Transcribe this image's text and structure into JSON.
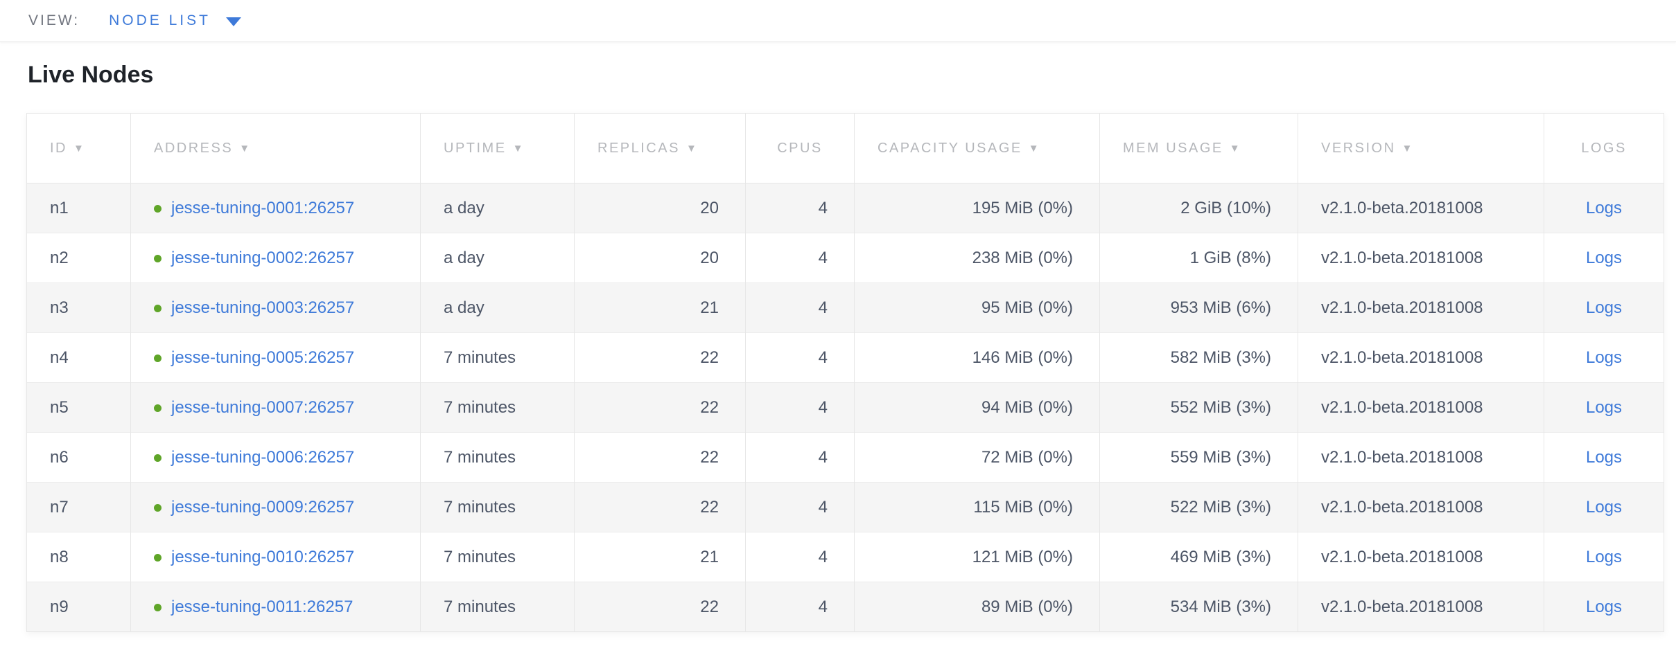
{
  "view_bar": {
    "label": "VIEW:",
    "selected": "NODE LIST"
  },
  "page": {
    "title": "Live Nodes"
  },
  "colors": {
    "accent_blue": "#3e7ad9",
    "live_green": "#5fa528",
    "header_gray": "#b5b7bb",
    "cell_text": "#4c5566",
    "alt_row_bg": "#f5f5f5"
  },
  "table": {
    "sort_arrow_icon": "▼",
    "logs_link_label": "Logs",
    "columns": [
      {
        "key": "id",
        "label": "ID",
        "sortable": true,
        "header_align": "left",
        "cell_align": "left"
      },
      {
        "key": "address",
        "label": "ADDRESS",
        "sortable": true,
        "header_align": "left",
        "cell_align": "left"
      },
      {
        "key": "uptime",
        "label": "UPTIME",
        "sortable": true,
        "header_align": "left",
        "cell_align": "left"
      },
      {
        "key": "replicas",
        "label": "REPLICAS",
        "sortable": true,
        "header_align": "left",
        "cell_align": "right"
      },
      {
        "key": "cpus",
        "label": "CPUS",
        "sortable": false,
        "header_align": "center",
        "cell_align": "right"
      },
      {
        "key": "capacity",
        "label": "CAPACITY USAGE",
        "sortable": true,
        "header_align": "left",
        "cell_align": "right"
      },
      {
        "key": "mem",
        "label": "MEM USAGE",
        "sortable": true,
        "header_align": "left",
        "cell_align": "right"
      },
      {
        "key": "version",
        "label": "VERSION",
        "sortable": true,
        "header_align": "left",
        "cell_align": "left"
      },
      {
        "key": "logs",
        "label": "LOGS",
        "sortable": false,
        "header_align": "center",
        "cell_align": "center"
      }
    ],
    "rows": [
      {
        "id": "n1",
        "address": "jesse-tuning-0001:26257",
        "status": "live",
        "uptime": "a day",
        "replicas": "20",
        "cpus": "4",
        "capacity": "195 MiB (0%)",
        "mem": "2 GiB (10%)",
        "version": "v2.1.0-beta.20181008"
      },
      {
        "id": "n2",
        "address": "jesse-tuning-0002:26257",
        "status": "live",
        "uptime": "a day",
        "replicas": "20",
        "cpus": "4",
        "capacity": "238 MiB (0%)",
        "mem": "1 GiB (8%)",
        "version": "v2.1.0-beta.20181008"
      },
      {
        "id": "n3",
        "address": "jesse-tuning-0003:26257",
        "status": "live",
        "uptime": "a day",
        "replicas": "21",
        "cpus": "4",
        "capacity": "95 MiB (0%)",
        "mem": "953 MiB (6%)",
        "version": "v2.1.0-beta.20181008"
      },
      {
        "id": "n4",
        "address": "jesse-tuning-0005:26257",
        "status": "live",
        "uptime": "7 minutes",
        "replicas": "22",
        "cpus": "4",
        "capacity": "146 MiB (0%)",
        "mem": "582 MiB (3%)",
        "version": "v2.1.0-beta.20181008"
      },
      {
        "id": "n5",
        "address": "jesse-tuning-0007:26257",
        "status": "live",
        "uptime": "7 minutes",
        "replicas": "22",
        "cpus": "4",
        "capacity": "94 MiB (0%)",
        "mem": "552 MiB (3%)",
        "version": "v2.1.0-beta.20181008"
      },
      {
        "id": "n6",
        "address": "jesse-tuning-0006:26257",
        "status": "live",
        "uptime": "7 minutes",
        "replicas": "22",
        "cpus": "4",
        "capacity": "72 MiB (0%)",
        "mem": "559 MiB (3%)",
        "version": "v2.1.0-beta.20181008"
      },
      {
        "id": "n7",
        "address": "jesse-tuning-0009:26257",
        "status": "live",
        "uptime": "7 minutes",
        "replicas": "22",
        "cpus": "4",
        "capacity": "115 MiB (0%)",
        "mem": "522 MiB (3%)",
        "version": "v2.1.0-beta.20181008"
      },
      {
        "id": "n8",
        "address": "jesse-tuning-0010:26257",
        "status": "live",
        "uptime": "7 minutes",
        "replicas": "21",
        "cpus": "4",
        "capacity": "121 MiB (0%)",
        "mem": "469 MiB (3%)",
        "version": "v2.1.0-beta.20181008"
      },
      {
        "id": "n9",
        "address": "jesse-tuning-0011:26257",
        "status": "live",
        "uptime": "7 minutes",
        "replicas": "22",
        "cpus": "4",
        "capacity": "89 MiB (0%)",
        "mem": "534 MiB (3%)",
        "version": "v2.1.0-beta.20181008"
      }
    ]
  }
}
